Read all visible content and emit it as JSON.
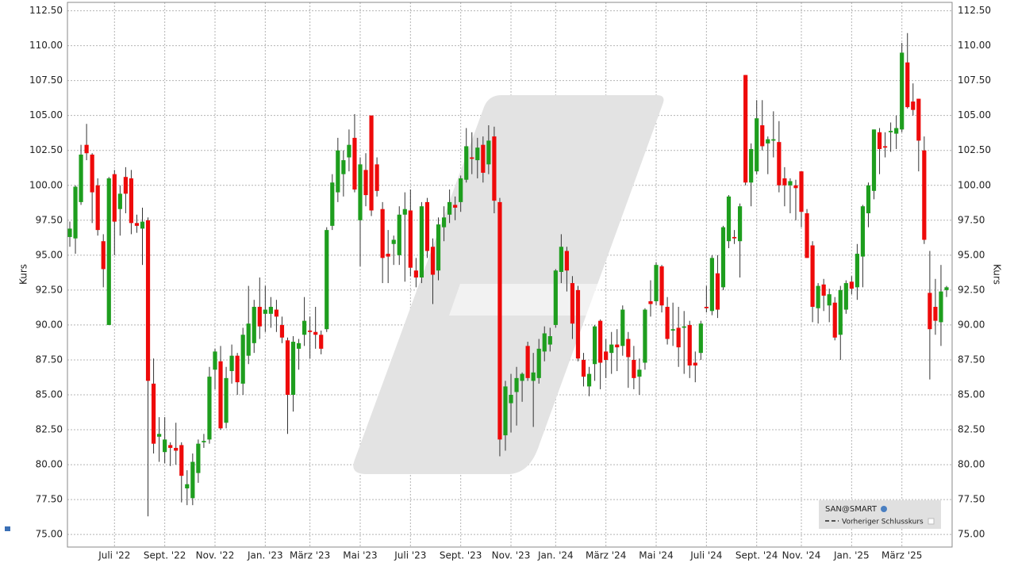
{
  "chart_data": {
    "type": "candlestick",
    "ylabel": "Kurs",
    "categories": [
      null,
      null,
      null,
      null,
      null,
      null,
      null,
      null,
      "Juli '22",
      null,
      null,
      null,
      null,
      null,
      null,
      null,
      null,
      "Sept. '22",
      null,
      null,
      null,
      null,
      null,
      null,
      null,
      null,
      "Nov. '22",
      null,
      null,
      null,
      null,
      null,
      null,
      null,
      null,
      "Jan. '23",
      null,
      null,
      null,
      null,
      null,
      null,
      null,
      "März '23",
      null,
      null,
      null,
      null,
      null,
      null,
      null,
      null,
      "Mai '23",
      null,
      null,
      null,
      null,
      null,
      null,
      null,
      null,
      "Juli '23",
      null,
      null,
      null,
      null,
      null,
      null,
      null,
      null,
      "Sept. '23",
      null,
      null,
      null,
      null,
      null,
      null,
      null,
      null,
      "Nov. '23",
      null,
      null,
      null,
      null,
      null,
      null,
      null,
      "Jan. '24",
      null,
      null,
      null,
      null,
      null,
      null,
      null,
      null,
      "März '24",
      null,
      null,
      null,
      null,
      null,
      null,
      null,
      null,
      "Mai '24",
      null,
      null,
      null,
      null,
      null,
      null,
      null,
      null,
      "Juli '24",
      null,
      null,
      null,
      null,
      null,
      null,
      null,
      null,
      "Sept. '24",
      null,
      null,
      null,
      null,
      null,
      null,
      null,
      "Nov. '24",
      null,
      null,
      null,
      null,
      null,
      null,
      null,
      null,
      "Jan. '25",
      null,
      null,
      null,
      null,
      null,
      null,
      null,
      null,
      "März '25",
      null,
      null,
      null,
      null,
      null,
      null,
      null,
      null
    ],
    "series": [
      {
        "name": "SAN@SMART",
        "up_color": "#1e9e1e",
        "down_color": "#ee0a0a",
        "open": [
          96.3,
          96.2,
          98.8,
          102.9,
          102.2,
          100.0,
          96.0,
          90.0,
          100.8,
          98.3,
          100.6,
          100.5,
          97.3,
          96.9,
          97.5,
          85.8,
          82.0,
          80.9,
          81.4,
          81.2,
          81.4,
          78.3,
          77.6,
          79.4,
          81.6,
          81.8,
          86.8,
          87.4,
          83.0,
          86.7,
          87.8,
          85.8,
          87.8,
          88.7,
          91.3,
          90.8,
          90.8,
          91.1,
          90.0,
          88.9,
          85.0,
          88.3,
          89.3,
          89.6,
          89.5,
          89.3,
          89.7,
          97.1,
          99.5,
          100.8,
          102.0,
          103.4,
          97.5,
          101.1,
          105.0,
          101.5,
          98.3,
          95.1,
          95.8,
          95.0,
          97.9,
          98.2,
          93.9,
          93.4,
          98.8,
          95.6,
          93.9,
          97.0,
          97.9,
          98.6,
          98.8,
          100.4,
          102.0,
          101.8,
          102.9,
          101.5,
          103.5,
          98.8,
          82.1,
          84.4,
          85.2,
          86.0,
          88.5,
          86.0,
          86.2,
          88.1,
          88.6,
          90.0,
          93.8,
          95.3,
          93.0,
          92.5,
          87.5,
          85.6,
          87.2,
          90.3,
          88.1,
          88.0,
          88.6,
          88.5,
          89.0,
          87.5,
          86.3,
          87.3,
          91.7,
          91.7,
          94.2,
          91.3,
          89.6,
          89.8,
          89.8,
          90.0,
          87.3,
          88.0,
          91.3,
          91.0,
          93.7,
          92.7,
          96.0,
          96.3,
          96.0,
          107.9,
          100.2,
          101.0,
          104.3,
          103.0,
          103.2,
          103.1,
          100.5,
          100.0,
          100.0,
          101.0,
          98.0,
          95.7,
          91.2,
          92.9,
          91.4,
          91.6,
          89.3,
          91.1,
          93.1,
          92.7,
          94.9,
          98.0,
          99.6,
          103.8,
          102.8,
          103.8,
          103.7,
          104.0,
          108.8,
          106.0,
          106.2,
          102.5,
          92.3,
          91.3,
          90.2,
          92.5
        ],
        "high": [
          97.4,
          100.0,
          102.9,
          104.4,
          102.3,
          100.5,
          96.5,
          100.6,
          101.1,
          100.0,
          101.3,
          101.1,
          97.9,
          98.4,
          97.7,
          87.6,
          83.4,
          83.4,
          81.6,
          83.0,
          81.6,
          79.6,
          80.8,
          81.8,
          82.2,
          87.0,
          88.3,
          88.5,
          87.0,
          88.6,
          88.0,
          89.8,
          92.8,
          91.8,
          93.4,
          92.8,
          92.0,
          91.8,
          90.6,
          89.1,
          89.2,
          89.0,
          92.0,
          90.6,
          91.3,
          89.6,
          97.0,
          100.8,
          103.4,
          102.5,
          104.0,
          105.1,
          102.0,
          102.3,
          105.0,
          102.0,
          98.8,
          96.8,
          96.4,
          98.5,
          99.5,
          99.7,
          94.8,
          98.8,
          99.1,
          96.2,
          97.7,
          98.5,
          99.7,
          99.2,
          100.7,
          104.1,
          103.8,
          103.4,
          103.5,
          104.3,
          104.2,
          99.1,
          86.0,
          86.5,
          87.0,
          86.6,
          88.8,
          88.0,
          89.0,
          89.9,
          89.8,
          94.0,
          96.5,
          95.6,
          93.5,
          92.8,
          88.0,
          87.0,
          90.0,
          90.4,
          89.0,
          89.5,
          89.7,
          91.4,
          89.5,
          88.5,
          87.6,
          91.2,
          93.2,
          94.5,
          94.3,
          92.0,
          91.6,
          91.3,
          91.0,
          90.3,
          88.1,
          90.3,
          92.8,
          95.0,
          95.0,
          97.1,
          99.3,
          96.8,
          98.7,
          107.9,
          103.0,
          106.1,
          106.1,
          103.5,
          105.3,
          104.6,
          101.3,
          100.5,
          100.4,
          101.0,
          98.3,
          96.0,
          93.0,
          93.3,
          92.6,
          92.0,
          92.8,
          93.2,
          93.5,
          95.8,
          98.6,
          100.2,
          104.0,
          104.1,
          103.8,
          104.5,
          105.0,
          110.2,
          110.9,
          107.3,
          106.2,
          103.5,
          95.3,
          93.3,
          94.3,
          92.8
        ],
        "low": [
          95.6,
          95.1,
          98.6,
          101.8,
          97.3,
          96.4,
          92.7,
          90.0,
          95.0,
          96.4,
          98.0,
          96.5,
          96.6,
          94.3,
          76.3,
          80.8,
          80.2,
          80.1,
          79.9,
          80.0,
          77.3,
          77.1,
          77.1,
          78.7,
          81.2,
          81.5,
          85.4,
          82.5,
          82.6,
          85.8,
          85.0,
          85.0,
          87.2,
          88.0,
          89.0,
          89.5,
          89.8,
          89.5,
          88.7,
          82.2,
          83.8,
          86.8,
          88.5,
          87.6,
          88.3,
          87.9,
          89.5,
          96.8,
          98.8,
          99.2,
          101.0,
          99.5,
          94.2,
          98.5,
          97.8,
          99.2,
          93.0,
          93.0,
          94.3,
          94.3,
          93.1,
          93.5,
          92.7,
          93.0,
          94.8,
          91.5,
          93.2,
          96.0,
          97.3,
          97.5,
          98.1,
          100.2,
          100.8,
          100.5,
          100.2,
          100.8,
          98.0,
          80.6,
          81.0,
          82.3,
          82.8,
          84.5,
          86.0,
          82.7,
          85.8,
          87.4,
          88.1,
          89.8,
          93.0,
          92.4,
          89.0,
          87.4,
          85.6,
          84.9,
          86.0,
          85.4,
          86.2,
          86.5,
          86.7,
          87.8,
          85.5,
          85.4,
          85.0,
          86.8,
          90.6,
          91.4,
          90.9,
          88.6,
          88.5,
          87.0,
          86.5,
          86.2,
          85.9,
          87.5,
          90.9,
          90.7,
          90.5,
          92.5,
          95.5,
          95.8,
          93.4,
          100.0,
          98.5,
          100.8,
          102.5,
          100.8,
          102.0,
          99.5,
          98.5,
          98.0,
          97.5,
          97.0,
          94.8,
          90.2,
          90.1,
          91.0,
          90.2,
          88.9,
          87.5,
          90.8,
          92.2,
          91.8,
          92.7,
          97.0,
          99.0,
          100.8,
          102.0,
          102.4,
          102.6,
          103.8,
          105.5,
          105.0,
          101.0,
          95.8,
          86.1,
          89.3,
          88.5,
          92.0
        ],
        "close": [
          96.9,
          99.9,
          102.2,
          102.3,
          99.5,
          96.8,
          94.0,
          100.5,
          97.4,
          99.4,
          99.4,
          97.3,
          97.1,
          97.4,
          86.0,
          81.5,
          82.2,
          81.8,
          81.2,
          81.0,
          79.2,
          78.6,
          80.2,
          81.5,
          81.7,
          86.3,
          88.1,
          82.6,
          86.2,
          87.8,
          85.9,
          89.3,
          90.1,
          91.3,
          89.9,
          91.1,
          91.3,
          90.6,
          89.1,
          85.0,
          88.8,
          88.7,
          90.3,
          89.5,
          89.3,
          88.3,
          96.8,
          100.2,
          102.5,
          101.8,
          102.9,
          99.7,
          101.5,
          99.3,
          98.2,
          99.6,
          94.8,
          94.9,
          96.1,
          97.9,
          98.3,
          94.1,
          93.4,
          98.5,
          95.3,
          93.6,
          97.2,
          97.7,
          98.8,
          98.4,
          100.5,
          102.8,
          101.9,
          102.7,
          100.9,
          103.2,
          98.9,
          81.8,
          85.6,
          85.0,
          86.2,
          86.5,
          86.2,
          86.6,
          88.3,
          89.4,
          89.2,
          93.9,
          95.6,
          93.9,
          90.1,
          87.6,
          86.3,
          86.5,
          89.9,
          87.3,
          87.5,
          88.6,
          88.4,
          91.1,
          87.7,
          86.2,
          86.8,
          91.1,
          91.5,
          94.3,
          91.4,
          89.0,
          89.7,
          88.4,
          89.9,
          87.1,
          87.1,
          90.1,
          91.2,
          94.8,
          91.1,
          97.0,
          99.2,
          96.2,
          98.5,
          100.2,
          102.6,
          104.8,
          102.8,
          103.3,
          103.3,
          100.0,
          100.0,
          100.3,
          99.8,
          98.1,
          94.8,
          91.3,
          92.8,
          92.1,
          92.2,
          89.1,
          92.5,
          93.0,
          92.6,
          95.1,
          98.5,
          100.0,
          104.0,
          102.6,
          102.7,
          103.9,
          104.1,
          109.5,
          105.6,
          105.4,
          103.2,
          96.1,
          89.7,
          90.3,
          92.4,
          92.7
        ]
      }
    ],
    "legend_items": [
      "Vorheriger Schlusskurs"
    ],
    "ylim": [
      74.1,
      113.1
    ],
    "yticks": [
      {
        "value": 75,
        "label": "75.00"
      },
      {
        "value": 77.5,
        "label": "77.50"
      },
      {
        "value": 80,
        "label": "80.00"
      },
      {
        "value": 82.5,
        "label": "82.50"
      },
      {
        "value": 85,
        "label": "85.00"
      },
      {
        "value": 87.5,
        "label": "87.50"
      },
      {
        "value": 90,
        "label": "90.00"
      },
      {
        "value": 92.5,
        "label": "92.50"
      },
      {
        "value": 95,
        "label": "95.00"
      },
      {
        "value": 97.5,
        "label": "97.50"
      },
      {
        "value": 100,
        "label": "100.00"
      },
      {
        "value": 102.5,
        "label": "102.50"
      },
      {
        "value": 105,
        "label": "105.00"
      },
      {
        "value": 107.5,
        "label": "107.50"
      },
      {
        "value": 110,
        "label": "110.00"
      },
      {
        "value": 112.5,
        "label": "112.50"
      }
    ],
    "grid": true
  }
}
